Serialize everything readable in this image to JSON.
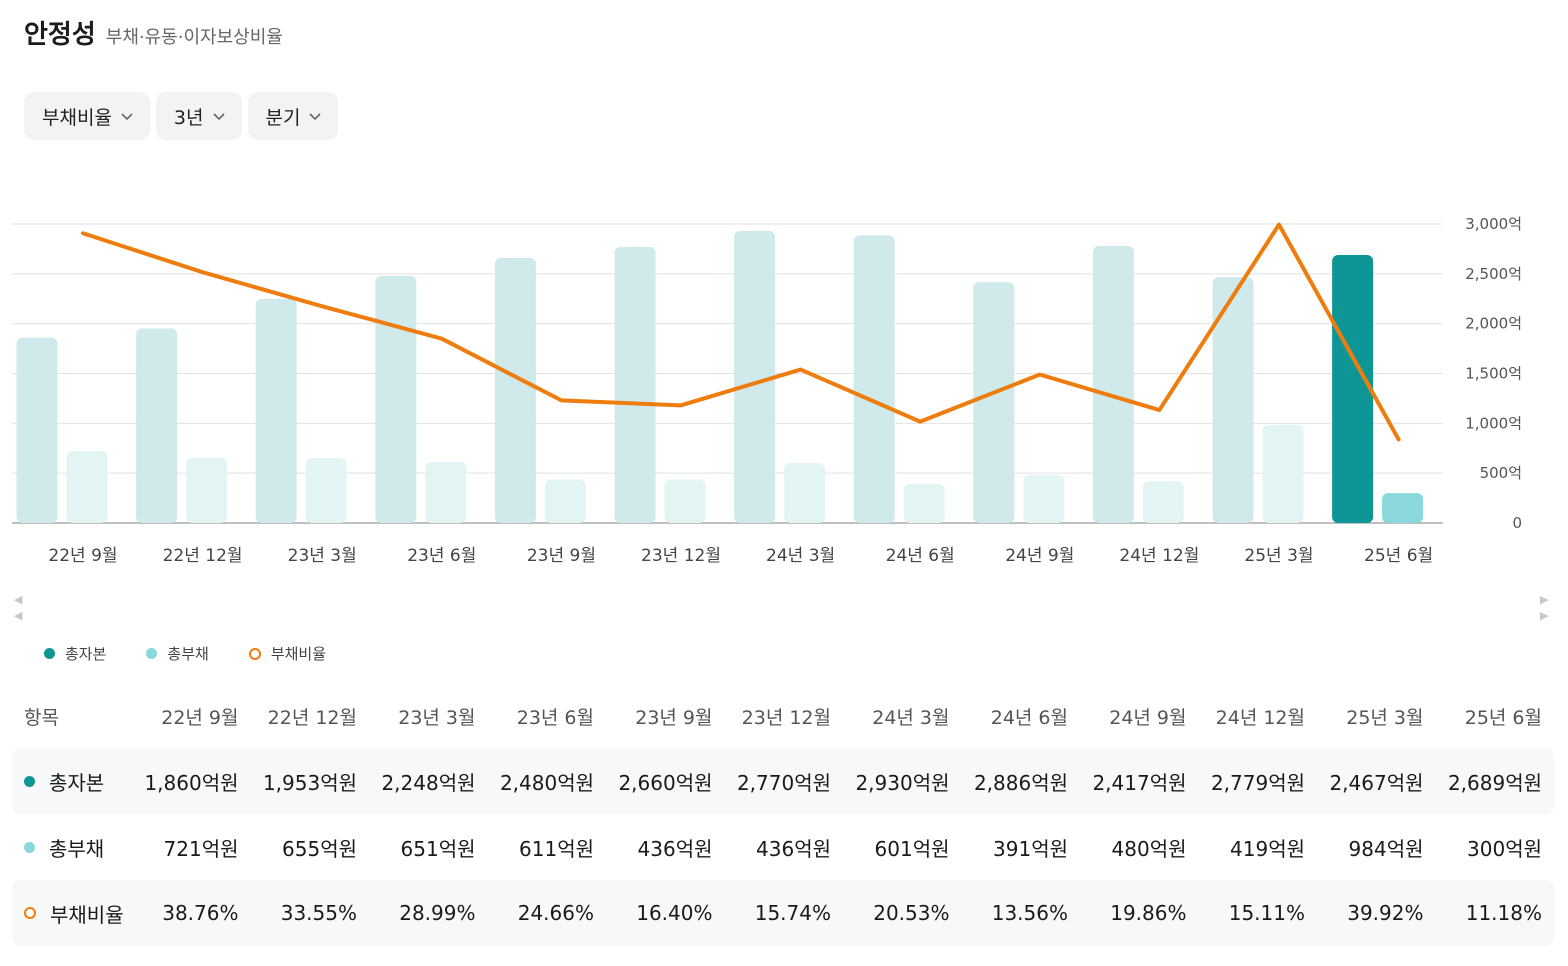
{
  "header": {
    "title": "안정성",
    "subtitle": "부채·유동·이자보상비율"
  },
  "filters": [
    {
      "label": "부채비율"
    },
    {
      "label": "3년"
    },
    {
      "label": "분기"
    }
  ],
  "colors": {
    "equity": "#0e9696",
    "equity_light": "#d0e9eb",
    "liability": "#8ad8db",
    "liability_light": "#e3f4f5",
    "ratio": "#ee7d0e",
    "grid": "#e2e2e2"
  },
  "chart_data": {
    "type": "bar",
    "categories": [
      "22년 9월",
      "22년 12월",
      "23년 3월",
      "23년 6월",
      "23년 9월",
      "23년 12월",
      "24년 3월",
      "24년 6월",
      "24년 9월",
      "24년 12월",
      "25년 3월",
      "25년 6월"
    ],
    "series": [
      {
        "name": "총자본",
        "unit": "억원",
        "values": [
          1860,
          1953,
          2248,
          2480,
          2660,
          2770,
          2930,
          2886,
          2417,
          2779,
          2467,
          2689
        ]
      },
      {
        "name": "총부채",
        "unit": "억원",
        "values": [
          721,
          655,
          651,
          611,
          436,
          436,
          601,
          391,
          480,
          419,
          984,
          300
        ]
      },
      {
        "name": "부채비율",
        "type": "line",
        "unit": "%",
        "values": [
          38.76,
          33.55,
          28.99,
          24.66,
          16.4,
          15.74,
          20.53,
          13.56,
          19.86,
          15.11,
          39.92,
          11.18
        ]
      }
    ],
    "y_axis": {
      "min": 0,
      "max": 3000,
      "ticks": [
        "0",
        "500억",
        "1,000억",
        "1,500억",
        "2,000억",
        "2,500억",
        "3,000억"
      ],
      "position": "right"
    },
    "line_axis_range": [
      0,
      40
    ],
    "highlighted_category": "25년 6월",
    "grid": true
  },
  "legend": [
    {
      "label": "총자본",
      "style": "dot",
      "color": "#0e9696"
    },
    {
      "label": "총부채",
      "style": "dot",
      "color": "#8ad8db"
    },
    {
      "label": "부채비율",
      "style": "ring",
      "color": "#ee7d0e"
    }
  ],
  "table": {
    "header_label": "항목",
    "columns": [
      "22년 9월",
      "22년 12월",
      "23년 3월",
      "23년 6월",
      "23년 9월",
      "23년 12월",
      "24년 3월",
      "24년 6월",
      "24년 9월",
      "24년 12월",
      "25년 3월",
      "25년 6월"
    ],
    "rows": [
      {
        "label": "총자본",
        "marker": "dot",
        "color": "#0e9696",
        "values": [
          "1,860억원",
          "1,953억원",
          "2,248억원",
          "2,480억원",
          "2,660억원",
          "2,770억원",
          "2,930억원",
          "2,886억원",
          "2,417억원",
          "2,779억원",
          "2,467억원",
          "2,689억원"
        ]
      },
      {
        "label": "총부채",
        "marker": "dot",
        "color": "#8ad8db",
        "values": [
          "721억원",
          "655억원",
          "651억원",
          "611억원",
          "436억원",
          "436억원",
          "601억원",
          "391억원",
          "480억원",
          "419억원",
          "984억원",
          "300억원"
        ]
      },
      {
        "label": "부채비율",
        "marker": "ring",
        "color": "#ee7d0e",
        "values": [
          "38.76%",
          "33.55%",
          "28.99%",
          "24.66%",
          "16.40%",
          "15.74%",
          "20.53%",
          "13.56%",
          "19.86%",
          "15.11%",
          "39.92%",
          "11.18%"
        ]
      }
    ]
  }
}
